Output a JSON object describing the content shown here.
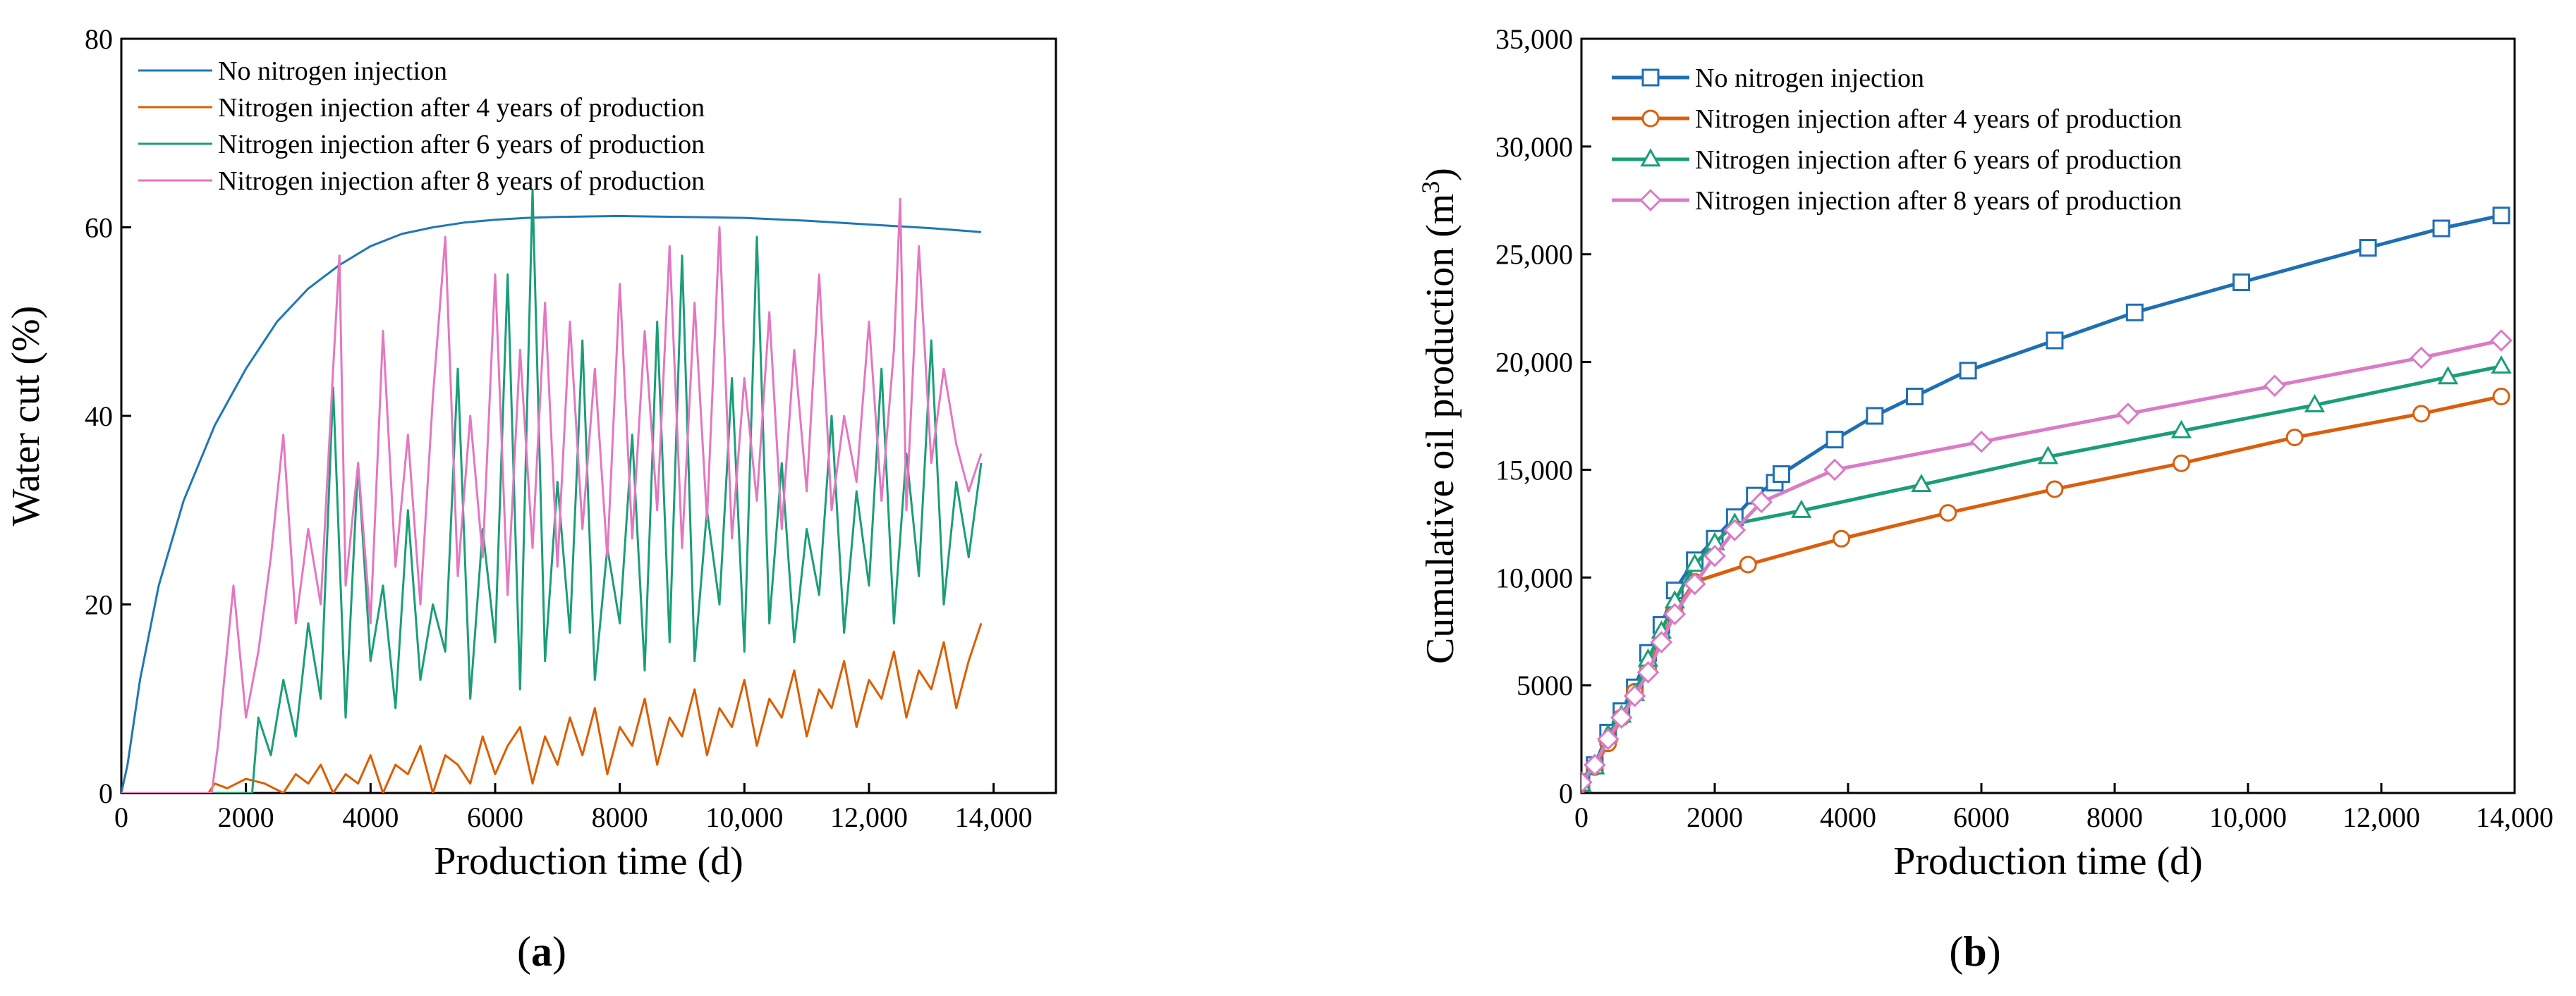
{
  "chart_data": [
    {
      "type": "line",
      "panel_label": "a",
      "xlabel": "Production time (d)",
      "ylabel": "Water cut (%)",
      "xlim": [
        0,
        15000
      ],
      "ylim": [
        0,
        80
      ],
      "xticks": [
        0,
        2000,
        4000,
        6000,
        8000,
        10000,
        12000,
        14000
      ],
      "xtick_labels": [
        "0",
        "2000",
        "4000",
        "6000",
        "8000",
        "10,000",
        "12,000",
        "14,000"
      ],
      "yticks": [
        0,
        20,
        40,
        60,
        80
      ],
      "ytick_labels": [
        "0",
        "20",
        "40",
        "60",
        "80"
      ],
      "legend_position": "top-left",
      "series": [
        {
          "name": "No nitrogen injection",
          "color": "#1f77b4",
          "x": [
            0,
            100,
            300,
            600,
            1000,
            1500,
            2000,
            2500,
            3000,
            3500,
            4000,
            4500,
            5000,
            5500,
            6000,
            6500,
            7000,
            8000,
            9000,
            10000,
            11000,
            12000,
            13000,
            13800
          ],
          "y": [
            0,
            3,
            12,
            22,
            31,
            39,
            45,
            50,
            53.5,
            56,
            58,
            59.3,
            60,
            60.5,
            60.8,
            61,
            61.1,
            61.2,
            61.1,
            61,
            60.7,
            60.3,
            59.9,
            59.5
          ]
        },
        {
          "name": "Nitrogen injection after 4 years of production",
          "color": "#d95f02",
          "x": [
            0,
            1400,
            1500,
            1700,
            2000,
            2300,
            2600,
            2800,
            3000,
            3200,
            3400,
            3600,
            3800,
            4000,
            4200,
            4400,
            4600,
            4800,
            5000,
            5200,
            5400,
            5600,
            5800,
            6000,
            6200,
            6400,
            6600,
            6800,
            7000,
            7200,
            7400,
            7600,
            7800,
            8000,
            8200,
            8400,
            8600,
            8800,
            9000,
            9200,
            9400,
            9600,
            9800,
            10000,
            10200,
            10400,
            10600,
            10800,
            11000,
            11200,
            11400,
            11600,
            11800,
            12000,
            12200,
            12400,
            12600,
            12800,
            13000,
            13200,
            13400,
            13600,
            13800
          ],
          "y": [
            0,
            0,
            1,
            0.5,
            1.5,
            1,
            0,
            2,
            1,
            3,
            0,
            2,
            1,
            4,
            0,
            3,
            2,
            5,
            0,
            4,
            3,
            1,
            6,
            2,
            5,
            7,
            1,
            6,
            3,
            8,
            4,
            9,
            2,
            7,
            5,
            10,
            3,
            8,
            6,
            11,
            4,
            9,
            7,
            12,
            5,
            10,
            8,
            13,
            6,
            11,
            9,
            14,
            7,
            12,
            10,
            15,
            8,
            13,
            11,
            16,
            9,
            14,
            18
          ]
        },
        {
          "name": "Nitrogen injection after 6 years of production",
          "color": "#1b9e77",
          "x": [
            0,
            2100,
            2200,
            2400,
            2600,
            2800,
            3000,
            3200,
            3400,
            3600,
            3800,
            4000,
            4200,
            4400,
            4600,
            4800,
            5000,
            5200,
            5400,
            5600,
            5800,
            6000,
            6200,
            6400,
            6600,
            6800,
            7000,
            7200,
            7400,
            7600,
            7800,
            8000,
            8200,
            8400,
            8600,
            8800,
            9000,
            9200,
            9400,
            9600,
            9800,
            10000,
            10200,
            10400,
            10600,
            10800,
            11000,
            11200,
            11400,
            11600,
            11800,
            12000,
            12200,
            12400,
            12600,
            12800,
            13000,
            13200,
            13400,
            13600,
            13800
          ],
          "y": [
            0,
            0,
            8,
            4,
            12,
            6,
            18,
            10,
            43,
            8,
            35,
            14,
            22,
            9,
            30,
            12,
            20,
            15,
            45,
            10,
            28,
            16,
            55,
            11,
            64,
            14,
            33,
            17,
            48,
            12,
            26,
            18,
            38,
            13,
            50,
            16,
            57,
            14,
            30,
            20,
            44,
            15,
            59,
            18,
            35,
            16,
            28,
            21,
            40,
            17,
            32,
            22,
            45,
            18,
            36,
            23,
            48,
            20,
            33,
            25,
            35
          ]
        },
        {
          "name": "Nitrogen injection after 8 years of production",
          "color": "#e377c2",
          "x": [
            0,
            1450,
            1550,
            1650,
            1800,
            2000,
            2200,
            2400,
            2600,
            2800,
            3000,
            3200,
            3400,
            3500,
            3600,
            3800,
            4000,
            4200,
            4400,
            4600,
            4800,
            5000,
            5200,
            5400,
            5600,
            5800,
            6000,
            6200,
            6400,
            6600,
            6800,
            7000,
            7200,
            7400,
            7600,
            7800,
            8000,
            8200,
            8400,
            8600,
            8800,
            9000,
            9200,
            9400,
            9600,
            9800,
            10000,
            10200,
            10400,
            10600,
            10800,
            11000,
            11200,
            11400,
            11600,
            11800,
            12000,
            12200,
            12400,
            12500,
            12600,
            12800,
            13000,
            13200,
            13400,
            13600,
            13800
          ],
          "y": [
            0,
            0,
            5,
            12,
            22,
            8,
            15,
            25,
            38,
            18,
            28,
            20,
            45,
            57,
            22,
            35,
            18,
            49,
            24,
            38,
            20,
            42,
            59,
            23,
            40,
            25,
            55,
            21,
            47,
            26,
            52,
            24,
            50,
            28,
            45,
            25,
            54,
            27,
            49,
            30,
            58,
            26,
            52,
            29,
            60,
            27,
            44,
            31,
            51,
            28,
            47,
            32,
            55,
            30,
            40,
            33,
            50,
            31,
            47,
            63,
            30,
            58,
            35,
            45,
            37,
            32,
            36
          ]
        }
      ]
    },
    {
      "type": "line",
      "panel_label": "b",
      "xlabel": "Production time (d)",
      "ylabel": "Cumulative oil production (m",
      "ylabel_superscript": "3",
      "ylabel_suffix": ")",
      "xlim": [
        0,
        14000
      ],
      "ylim": [
        0,
        35000
      ],
      "xticks": [
        0,
        2000,
        4000,
        6000,
        8000,
        10000,
        12000,
        14000
      ],
      "xtick_labels": [
        "0",
        "2000",
        "4000",
        "6000",
        "8000",
        "10,000",
        "12,000",
        "14,000"
      ],
      "yticks": [
        0,
        5000,
        10000,
        15000,
        20000,
        25000,
        30000,
        35000
      ],
      "ytick_labels": [
        "0",
        "5000",
        "10,000",
        "15,000",
        "20,000",
        "25,000",
        "30,000",
        "35,000"
      ],
      "legend_position": "top-left",
      "series": [
        {
          "name": "No nitrogen injection",
          "color": "#1f6fb2",
          "marker": "square",
          "x": [
            0,
            200,
            400,
            600,
            800,
            1000,
            1200,
            1400,
            1700,
            2000,
            2300,
            2600,
            2900,
            3000,
            3800,
            4400,
            5000,
            5800,
            7100,
            8300,
            9900,
            11800,
            12900,
            13800
          ],
          "y": [
            500,
            1300,
            2800,
            3800,
            4900,
            6500,
            7800,
            9400,
            10800,
            11800,
            12800,
            13800,
            14400,
            14800,
            16400,
            17500,
            18400,
            19600,
            21000,
            22300,
            23700,
            25300,
            26200,
            26800
          ]
        },
        {
          "name": "Nitrogen injection after 4 years of production",
          "color": "#d95f0e",
          "marker": "circle",
          "x": [
            0,
            200,
            400,
            600,
            800,
            1000,
            1200,
            1400,
            1700,
            2500,
            3900,
            5500,
            7100,
            9000,
            10700,
            12600,
            13800
          ],
          "y": [
            400,
            1200,
            2300,
            3500,
            4700,
            5800,
            7100,
            8400,
            9800,
            10600,
            11800,
            13000,
            14100,
            15300,
            16500,
            17600,
            18400
          ]
        },
        {
          "name": "Nitrogen injection after 6 years of production",
          "color": "#1b9e77",
          "marker": "triangle",
          "x": [
            0,
            200,
            400,
            600,
            800,
            1000,
            1200,
            1400,
            1700,
            2000,
            2300,
            3300,
            5100,
            7000,
            9000,
            11000,
            13000,
            13800
          ],
          "y": [
            400,
            1200,
            2700,
            3600,
            4600,
            6200,
            7500,
            8900,
            10600,
            11600,
            12500,
            13100,
            14300,
            15600,
            16800,
            18000,
            19300,
            19800
          ]
        },
        {
          "name": "Nitrogen injection after 8 years of production",
          "color": "#d97bc6",
          "marker": "diamond",
          "x": [
            0,
            200,
            400,
            600,
            800,
            1000,
            1200,
            1400,
            1700,
            2000,
            2300,
            2700,
            3800,
            6000,
            8200,
            10400,
            12600,
            13800
          ],
          "y": [
            500,
            1300,
            2500,
            3500,
            4500,
            5600,
            7000,
            8300,
            9700,
            11000,
            12200,
            13500,
            15000,
            16300,
            17600,
            18900,
            20200,
            21000
          ]
        }
      ]
    }
  ]
}
